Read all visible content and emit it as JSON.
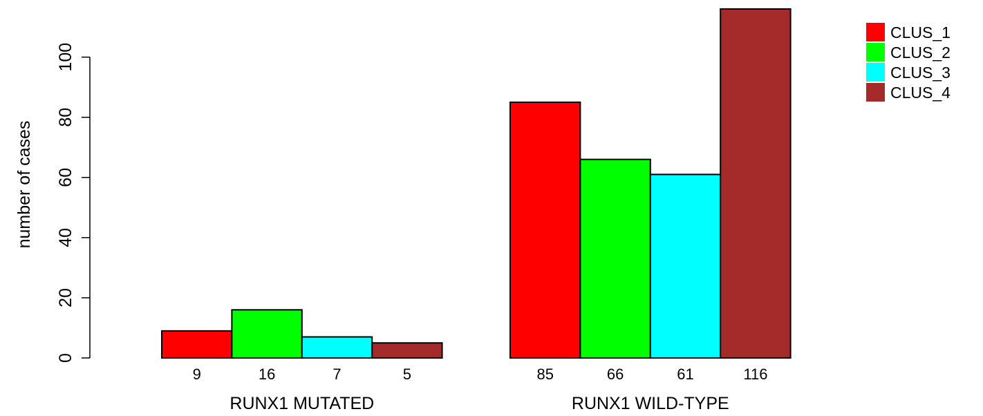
{
  "chart_data": {
    "type": "bar",
    "title": "",
    "xlabel": "",
    "ylabel": "number of cases",
    "ylim": [
      0,
      116
    ],
    "yticks": [
      0,
      20,
      40,
      60,
      80,
      100
    ],
    "grid": false,
    "legend_position": "top-right",
    "groups": [
      "RUNX1 MUTATED",
      "RUNX1 WILD-TYPE"
    ],
    "series": [
      {
        "name": "CLUS_1",
        "color": "#ff0000",
        "values": [
          9,
          85
        ]
      },
      {
        "name": "CLUS_2",
        "color": "#00ff00",
        "values": [
          16,
          66
        ]
      },
      {
        "name": "CLUS_3",
        "color": "#00ffff",
        "values": [
          7,
          61
        ]
      },
      {
        "name": "CLUS_4",
        "color": "#a52a2a",
        "values": [
          5,
          116
        ]
      }
    ],
    "bar_labels": [
      [
        "9",
        "16",
        "7",
        "5"
      ],
      [
        "85",
        "66",
        "61",
        "116"
      ]
    ]
  }
}
